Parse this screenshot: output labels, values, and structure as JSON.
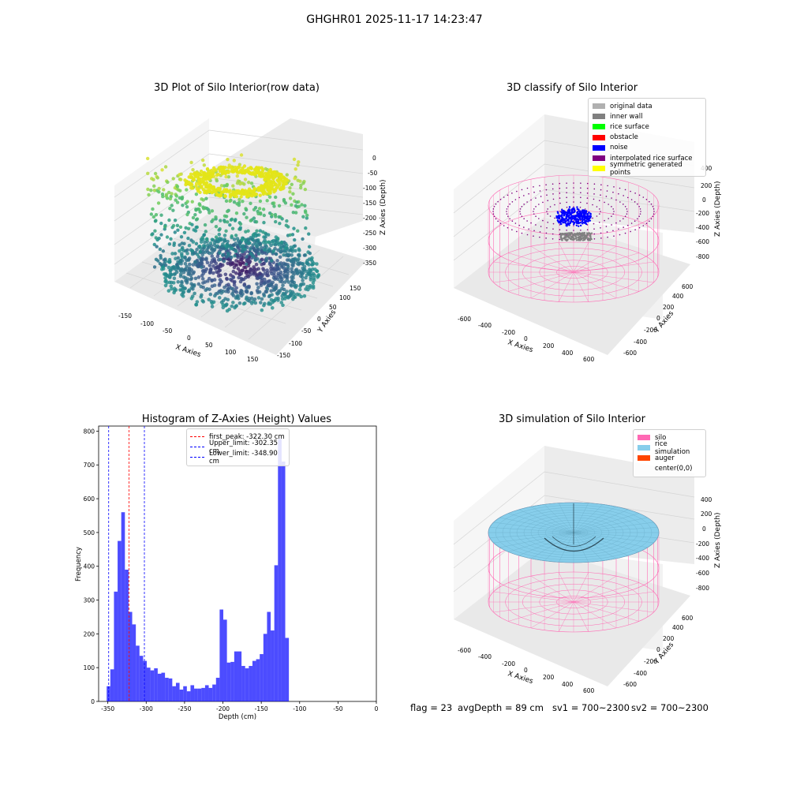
{
  "suptitle": "GHGHR01 2025-11-17 14:23:47",
  "panels": {
    "raw": {
      "title": "3D Plot of Silo Interior(row data)",
      "xlabel": "X Axies",
      "ylabel": "Y Axies",
      "zlabel": "Z Axies (Depth)",
      "xticks": [
        "-150",
        "-100",
        "-50",
        "0",
        "50",
        "100",
        "150"
      ],
      "yticks": [
        "-150",
        "-100",
        "-50",
        "0",
        "50",
        "100",
        "150"
      ],
      "zticks": [
        "0",
        "-50",
        "-100",
        "-150",
        "-200",
        "-250",
        "-300",
        "-350"
      ]
    },
    "classify": {
      "title": "3D classify of Silo Interior",
      "xlabel": "X Axies",
      "ylabel": "Y Axies",
      "zlabel": "Z Axies (Depth)",
      "xticks": [
        "-600",
        "-400",
        "-200",
        "0",
        "200",
        "400",
        "600"
      ],
      "yticks": [
        "-600",
        "-400",
        "-200",
        "0",
        "200",
        "400",
        "600"
      ],
      "zticks": [
        "400",
        "200",
        "0",
        "-200",
        "-400",
        "-600",
        "-800"
      ],
      "legend": [
        {
          "label": "original data",
          "color": "#b0b0b0"
        },
        {
          "label": "inner wall",
          "color": "#808080"
        },
        {
          "label": "rice surface",
          "color": "#00ff00"
        },
        {
          "label": "obstacle",
          "color": "#ff0000"
        },
        {
          "label": "noise",
          "color": "#0000ff"
        },
        {
          "label": "interpolated rice surface",
          "color": "#800080"
        },
        {
          "label": "symmetric generated points",
          "color": "#ffff00"
        }
      ]
    },
    "histogram": {
      "title": "Histogram of Z-Axies (Height) Values",
      "xlabel": "Depth (cm)",
      "ylabel": "Frequency",
      "legend": [
        {
          "label": "first_peak: -322.30 cm",
          "color": "#ff0000"
        },
        {
          "label": "Upper_limit: -302.35 cm",
          "color": "#0000ff"
        },
        {
          "label": "Lower_limit: -348.90 cm",
          "color": "#0000ff"
        }
      ]
    },
    "simulation": {
      "title": "3D simulation of Silo Interior",
      "xlabel": "X Axies",
      "ylabel": "Y Axies",
      "zlabel": "Z Axies (Depth)",
      "xticks": [
        "-600",
        "-400",
        "-200",
        "0",
        "200",
        "400",
        "600"
      ],
      "yticks": [
        "-600",
        "-400",
        "-200",
        "0",
        "200",
        "400",
        "600"
      ],
      "zticks": [
        "400",
        "200",
        "0",
        "-200",
        "-400",
        "-600",
        "-800"
      ],
      "legend": [
        {
          "label": "silo",
          "color": "#ff69b4"
        },
        {
          "label": "rice simulation",
          "color": "#87ceeb"
        },
        {
          "label": "auger",
          "color": "#ff4500"
        },
        {
          "label": "center(0,0)",
          "color": ""
        }
      ]
    }
  },
  "footer": {
    "flag": "flag = 23",
    "avg_depth": "avgDepth = 89 cm",
    "sv1": "sv1 = 700~2300",
    "sv2": "sv2 = 700~2300"
  },
  "chart_data": [
    {
      "type": "scatter",
      "title": "3D Plot of Silo Interior(row data)",
      "xlabel": "X Axies",
      "ylabel": "Y Axies",
      "zlabel": "Z Axies (Depth)",
      "xlim": [
        -160,
        160
      ],
      "ylim": [
        -160,
        160
      ],
      "zlim": [
        -370,
        0
      ],
      "colormap": "viridis"
    },
    {
      "type": "scatter",
      "title": "3D classify of Silo Interior",
      "xlabel": "X Axies",
      "ylabel": "Y Axies",
      "zlabel": "Z Axies (Depth)",
      "xlim": [
        -700,
        700
      ],
      "ylim": [
        -700,
        700
      ],
      "zlim": [
        -900,
        450
      ],
      "series": [
        {
          "name": "original data"
        },
        {
          "name": "inner wall"
        },
        {
          "name": "rice surface"
        },
        {
          "name": "obstacle"
        },
        {
          "name": "noise"
        },
        {
          "name": "interpolated rice surface"
        },
        {
          "name": "symmetric generated points"
        }
      ]
    },
    {
      "type": "bar",
      "title": "Histogram of Z-Axies (Height) Values",
      "xlabel": "Depth (cm)",
      "ylabel": "Frequency",
      "xlim": [
        -362,
        0
      ],
      "ylim": [
        0,
        815
      ],
      "bin_start": -351.5,
      "bin_width": 4.75,
      "values": [
        45,
        95,
        325,
        475,
        560,
        390,
        265,
        228,
        165,
        135,
        120,
        100,
        92,
        98,
        82,
        85,
        70,
        68,
        45,
        55,
        35,
        45,
        30,
        48,
        38,
        38,
        40,
        48,
        40,
        50,
        70,
        272,
        242,
        115,
        117,
        148,
        148,
        105,
        98,
        105,
        120,
        125,
        140,
        200,
        265,
        210,
        403,
        777,
        710,
        188
      ],
      "xticks": [
        -350,
        -300,
        -250,
        -200,
        -150,
        -100,
        -50,
        0
      ],
      "yticks": [
        0,
        100,
        200,
        300,
        400,
        500,
        600,
        700,
        800
      ],
      "vlines": [
        {
          "name": "first_peak: -322.30 cm",
          "x": -322.3,
          "color": "#ff0000"
        },
        {
          "name": "Upper_limit: -302.35 cm",
          "x": -302.35,
          "color": "#0000ff"
        },
        {
          "name": "Lower_limit: -348.90 cm",
          "x": -348.9,
          "color": "#0000ff"
        }
      ],
      "legend_position": "top-center"
    },
    {
      "type": "surface",
      "title": "3D simulation of Silo Interior",
      "xlabel": "X Axies",
      "ylabel": "Y Axies",
      "zlabel": "Z Axies (Depth)",
      "xlim": [
        -700,
        700
      ],
      "ylim": [
        -700,
        700
      ],
      "zlim": [
        -900,
        450
      ],
      "series": [
        {
          "name": "silo"
        },
        {
          "name": "rice simulation"
        },
        {
          "name": "auger"
        },
        {
          "name": "center(0,0)"
        }
      ]
    }
  ]
}
